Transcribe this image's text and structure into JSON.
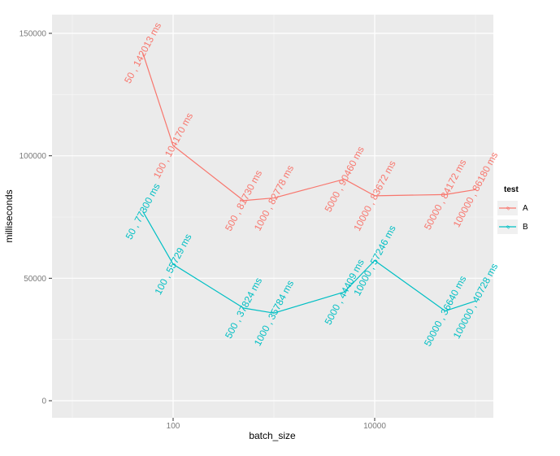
{
  "chart_data": {
    "type": "line",
    "title": "",
    "xlabel": "batch_size",
    "ylabel": "milliseconds",
    "x_scale": "log10",
    "grid": true,
    "panel_bg": "#EBEBEB",
    "grid_color": "#FFFFFF",
    "tick_label_color": "#7a7a7a",
    "tick_mark_color": "#333333",
    "x_ticks": [
      {
        "value": 100,
        "label": "100"
      },
      {
        "value": 10000,
        "label": "10000"
      }
    ],
    "x_minor_ticks": [
      10,
      1000,
      100000
    ],
    "y_ticks": [
      {
        "value": 0,
        "label": "0"
      },
      {
        "value": 50000,
        "label": "50000"
      },
      {
        "value": 100000,
        "label": "100000"
      },
      {
        "value": 150000,
        "label": "150000"
      }
    ],
    "y_minor_ticks": [
      25000,
      75000,
      125000
    ],
    "ylim": [
      0,
      157000
    ],
    "xlim": [
      50,
      100000
    ],
    "label_angle_deg": -62,
    "legend_position": "right",
    "series": [
      {
        "name": "A",
        "color": "#F8766D",
        "points": [
          {
            "x": 50,
            "y": 142013,
            "label": "50 , 142013 ms"
          },
          {
            "x": 100,
            "y": 104170,
            "label": "100 , 104170 ms"
          },
          {
            "x": 500,
            "y": 81730,
            "label": "500 , 81730 ms"
          },
          {
            "x": 1000,
            "y": 82778,
            "label": "1000 , 82778 ms"
          },
          {
            "x": 5000,
            "y": 90460,
            "label": "5000 , 90460 ms"
          },
          {
            "x": 10000,
            "y": 83672,
            "label": "10000 , 83672 ms"
          },
          {
            "x": 50000,
            "y": 84172,
            "label": "50000 , 84172 ms"
          },
          {
            "x": 100000,
            "y": 86180,
            "label": "100000 , 86180 ms"
          }
        ]
      },
      {
        "name": "B",
        "color": "#00BFC4",
        "points": [
          {
            "x": 50,
            "y": 77300,
            "label": "50 , 77300 ms"
          },
          {
            "x": 100,
            "y": 55729,
            "label": "100 , 55729 ms"
          },
          {
            "x": 500,
            "y": 37824,
            "label": "500 , 37824 ms"
          },
          {
            "x": 1000,
            "y": 35784,
            "label": "1000 , 35784 ms"
          },
          {
            "x": 5000,
            "y": 44409,
            "label": "5000 , 44409 ms"
          },
          {
            "x": 10000,
            "y": 57246,
            "label": "10000 , 57246 ms"
          },
          {
            "x": 50000,
            "y": 36640,
            "label": "50000 , 36640 ms"
          },
          {
            "x": 100000,
            "y": 40728,
            "label": "100000 , 40728 ms"
          }
        ]
      }
    ]
  },
  "legend": {
    "title": "test",
    "key_glyph": "a",
    "entries": [
      {
        "label": "A",
        "color": "#F8766D"
      },
      {
        "label": "B",
        "color": "#00BFC4"
      }
    ]
  }
}
